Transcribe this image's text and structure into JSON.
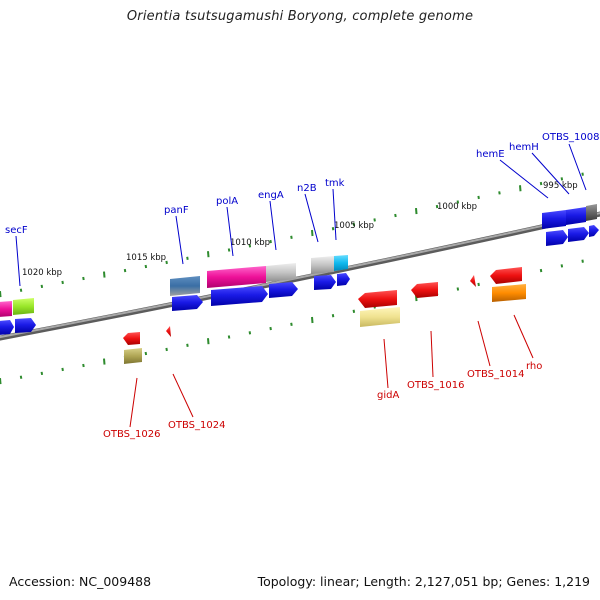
{
  "title": "Orientia tsutsugamushi Boryong, complete genome",
  "footer": {
    "accession": "Accession: NC_009488",
    "stats": "Topology: linear; Length: 2,127,051 bp; Genes: 1,219"
  },
  "colors": {
    "backbone": "#7a7a7a",
    "tick": "#2e8b2e",
    "forward_label": "#0000cc",
    "reverse_label": "#cc0000"
  },
  "kbp_marks": [
    "1020 kbp",
    "1015 kbp",
    "1010 kbp",
    "1005 kbp",
    "1000 kbp",
    "995 kbp"
  ],
  "forward_labels": [
    "secF",
    "panF",
    "polA",
    "engA",
    "n2B",
    "tmk",
    "hemE",
    "hemH",
    "OTBS_1008"
  ],
  "reverse_labels": [
    "OTBS_1026",
    "OTBS_1024",
    "gidA",
    "OTBS_1016",
    "OTBS_1014",
    "rho"
  ]
}
